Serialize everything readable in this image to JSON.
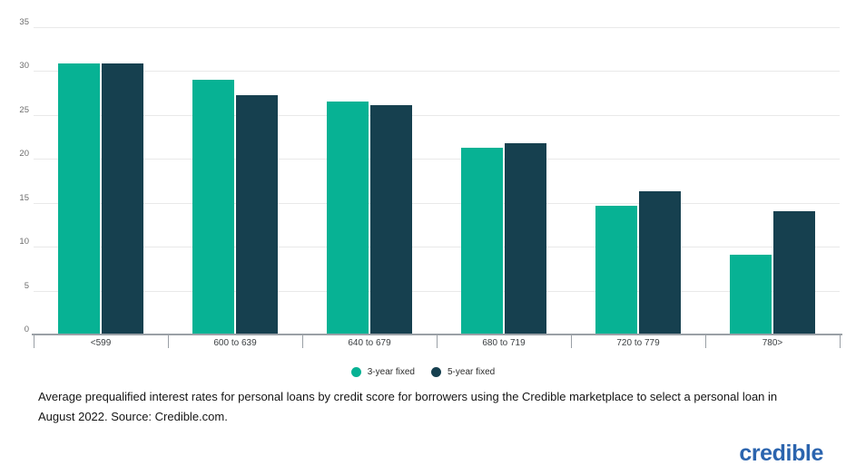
{
  "chart_data": {
    "type": "bar",
    "title": "",
    "categories": [
      "<599",
      "600 to 639",
      "640 to 679",
      "680 to 719",
      "720 to 779",
      "780>"
    ],
    "series": [
      {
        "name": "3-year fixed",
        "color": "#07b294",
        "values": [
          30.9,
          29.0,
          26.5,
          21.3,
          14.7,
          9.1
        ]
      },
      {
        "name": "5-year fixed",
        "color": "#16404f",
        "values": [
          30.9,
          27.3,
          26.1,
          21.8,
          16.3,
          14.0
        ]
      }
    ],
    "xlabel": "",
    "ylabel": "",
    "ylim": [
      0,
      35
    ],
    "yticks": [
      0,
      5,
      10,
      15,
      20,
      25,
      30,
      35
    ],
    "grid": true,
    "legend_position": "bottom",
    "axis_color": "#9aa0a6",
    "gridline_color": "#e9e9e9"
  },
  "legend": {
    "items": [
      {
        "label": "3-year fixed",
        "color": "#07b294"
      },
      {
        "label": "5-year fixed",
        "color": "#16404f"
      }
    ]
  },
  "caption": {
    "text": "Average prequalified interest rates for personal loans by credit score for borrowers using the Credible marketplace to select a personal loan in August 2022. Source: Credible.com."
  },
  "branding": {
    "logo_text": "credible",
    "logo_color": "#2b64ae"
  }
}
